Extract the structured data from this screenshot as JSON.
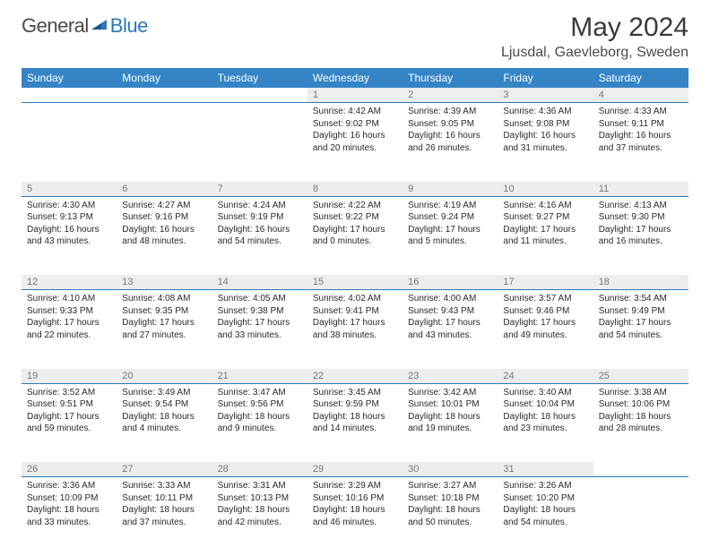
{
  "brand": {
    "general": "General",
    "blue": "Blue"
  },
  "title": "May 2024",
  "location": "Ljusdal, Gaevleborg, Sweden",
  "colors": {
    "header_bg": "#3585c6",
    "header_text": "#ffffff",
    "daynum_bg": "#ecedee",
    "daynum_text": "#787878",
    "divider": "#2a78b8",
    "body_text": "#2a2a2a",
    "title_text": "#3a3a3a",
    "brand_gray": "#4a4a4a",
    "brand_blue": "#2a78b8",
    "background": "#ffffff"
  },
  "typography": {
    "title_fontsize": 30,
    "location_fontsize": 16,
    "header_fontsize": 12,
    "daynum_fontsize": 11,
    "cell_fontsize": 10,
    "logo_fontsize": 22
  },
  "weekdays": [
    "Sunday",
    "Monday",
    "Tuesday",
    "Wednesday",
    "Thursday",
    "Friday",
    "Saturday"
  ],
  "weeks": [
    [
      null,
      null,
      null,
      {
        "n": "1",
        "sr": "Sunrise: 4:42 AM",
        "ss": "Sunset: 9:02 PM",
        "d1": "Daylight: 16 hours",
        "d2": "and 20 minutes."
      },
      {
        "n": "2",
        "sr": "Sunrise: 4:39 AM",
        "ss": "Sunset: 9:05 PM",
        "d1": "Daylight: 16 hours",
        "d2": "and 26 minutes."
      },
      {
        "n": "3",
        "sr": "Sunrise: 4:36 AM",
        "ss": "Sunset: 9:08 PM",
        "d1": "Daylight: 16 hours",
        "d2": "and 31 minutes."
      },
      {
        "n": "4",
        "sr": "Sunrise: 4:33 AM",
        "ss": "Sunset: 9:11 PM",
        "d1": "Daylight: 16 hours",
        "d2": "and 37 minutes."
      }
    ],
    [
      {
        "n": "5",
        "sr": "Sunrise: 4:30 AM",
        "ss": "Sunset: 9:13 PM",
        "d1": "Daylight: 16 hours",
        "d2": "and 43 minutes."
      },
      {
        "n": "6",
        "sr": "Sunrise: 4:27 AM",
        "ss": "Sunset: 9:16 PM",
        "d1": "Daylight: 16 hours",
        "d2": "and 48 minutes."
      },
      {
        "n": "7",
        "sr": "Sunrise: 4:24 AM",
        "ss": "Sunset: 9:19 PM",
        "d1": "Daylight: 16 hours",
        "d2": "and 54 minutes."
      },
      {
        "n": "8",
        "sr": "Sunrise: 4:22 AM",
        "ss": "Sunset: 9:22 PM",
        "d1": "Daylight: 17 hours",
        "d2": "and 0 minutes."
      },
      {
        "n": "9",
        "sr": "Sunrise: 4:19 AM",
        "ss": "Sunset: 9:24 PM",
        "d1": "Daylight: 17 hours",
        "d2": "and 5 minutes."
      },
      {
        "n": "10",
        "sr": "Sunrise: 4:16 AM",
        "ss": "Sunset: 9:27 PM",
        "d1": "Daylight: 17 hours",
        "d2": "and 11 minutes."
      },
      {
        "n": "11",
        "sr": "Sunrise: 4:13 AM",
        "ss": "Sunset: 9:30 PM",
        "d1": "Daylight: 17 hours",
        "d2": "and 16 minutes."
      }
    ],
    [
      {
        "n": "12",
        "sr": "Sunrise: 4:10 AM",
        "ss": "Sunset: 9:33 PM",
        "d1": "Daylight: 17 hours",
        "d2": "and 22 minutes."
      },
      {
        "n": "13",
        "sr": "Sunrise: 4:08 AM",
        "ss": "Sunset: 9:35 PM",
        "d1": "Daylight: 17 hours",
        "d2": "and 27 minutes."
      },
      {
        "n": "14",
        "sr": "Sunrise: 4:05 AM",
        "ss": "Sunset: 9:38 PM",
        "d1": "Daylight: 17 hours",
        "d2": "and 33 minutes."
      },
      {
        "n": "15",
        "sr": "Sunrise: 4:02 AM",
        "ss": "Sunset: 9:41 PM",
        "d1": "Daylight: 17 hours",
        "d2": "and 38 minutes."
      },
      {
        "n": "16",
        "sr": "Sunrise: 4:00 AM",
        "ss": "Sunset: 9:43 PM",
        "d1": "Daylight: 17 hours",
        "d2": "and 43 minutes."
      },
      {
        "n": "17",
        "sr": "Sunrise: 3:57 AM",
        "ss": "Sunset: 9:46 PM",
        "d1": "Daylight: 17 hours",
        "d2": "and 49 minutes."
      },
      {
        "n": "18",
        "sr": "Sunrise: 3:54 AM",
        "ss": "Sunset: 9:49 PM",
        "d1": "Daylight: 17 hours",
        "d2": "and 54 minutes."
      }
    ],
    [
      {
        "n": "19",
        "sr": "Sunrise: 3:52 AM",
        "ss": "Sunset: 9:51 PM",
        "d1": "Daylight: 17 hours",
        "d2": "and 59 minutes."
      },
      {
        "n": "20",
        "sr": "Sunrise: 3:49 AM",
        "ss": "Sunset: 9:54 PM",
        "d1": "Daylight: 18 hours",
        "d2": "and 4 minutes."
      },
      {
        "n": "21",
        "sr": "Sunrise: 3:47 AM",
        "ss": "Sunset: 9:56 PM",
        "d1": "Daylight: 18 hours",
        "d2": "and 9 minutes."
      },
      {
        "n": "22",
        "sr": "Sunrise: 3:45 AM",
        "ss": "Sunset: 9:59 PM",
        "d1": "Daylight: 18 hours",
        "d2": "and 14 minutes."
      },
      {
        "n": "23",
        "sr": "Sunrise: 3:42 AM",
        "ss": "Sunset: 10:01 PM",
        "d1": "Daylight: 18 hours",
        "d2": "and 19 minutes."
      },
      {
        "n": "24",
        "sr": "Sunrise: 3:40 AM",
        "ss": "Sunset: 10:04 PM",
        "d1": "Daylight: 18 hours",
        "d2": "and 23 minutes."
      },
      {
        "n": "25",
        "sr": "Sunrise: 3:38 AM",
        "ss": "Sunset: 10:06 PM",
        "d1": "Daylight: 18 hours",
        "d2": "and 28 minutes."
      }
    ],
    [
      {
        "n": "26",
        "sr": "Sunrise: 3:36 AM",
        "ss": "Sunset: 10:09 PM",
        "d1": "Daylight: 18 hours",
        "d2": "and 33 minutes."
      },
      {
        "n": "27",
        "sr": "Sunrise: 3:33 AM",
        "ss": "Sunset: 10:11 PM",
        "d1": "Daylight: 18 hours",
        "d2": "and 37 minutes."
      },
      {
        "n": "28",
        "sr": "Sunrise: 3:31 AM",
        "ss": "Sunset: 10:13 PM",
        "d1": "Daylight: 18 hours",
        "d2": "and 42 minutes."
      },
      {
        "n": "29",
        "sr": "Sunrise: 3:29 AM",
        "ss": "Sunset: 10:16 PM",
        "d1": "Daylight: 18 hours",
        "d2": "and 46 minutes."
      },
      {
        "n": "30",
        "sr": "Sunrise: 3:27 AM",
        "ss": "Sunset: 10:18 PM",
        "d1": "Daylight: 18 hours",
        "d2": "and 50 minutes."
      },
      {
        "n": "31",
        "sr": "Sunrise: 3:26 AM",
        "ss": "Sunset: 10:20 PM",
        "d1": "Daylight: 18 hours",
        "d2": "and 54 minutes."
      },
      null
    ]
  ]
}
